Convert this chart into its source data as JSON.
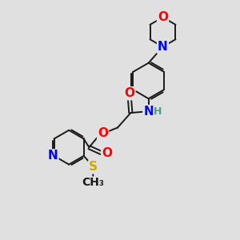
{
  "bg_color": "#e0e0e0",
  "bond_color": "#1a1a1a",
  "atom_colors": {
    "O": "#ff0000",
    "N": "#0000ff",
    "S": "#ccaa00",
    "H": "#4a9a8a",
    "C": "#1a1a1a"
  },
  "font_size_atom": 11,
  "font_size_small": 9,
  "lw": 1.4
}
